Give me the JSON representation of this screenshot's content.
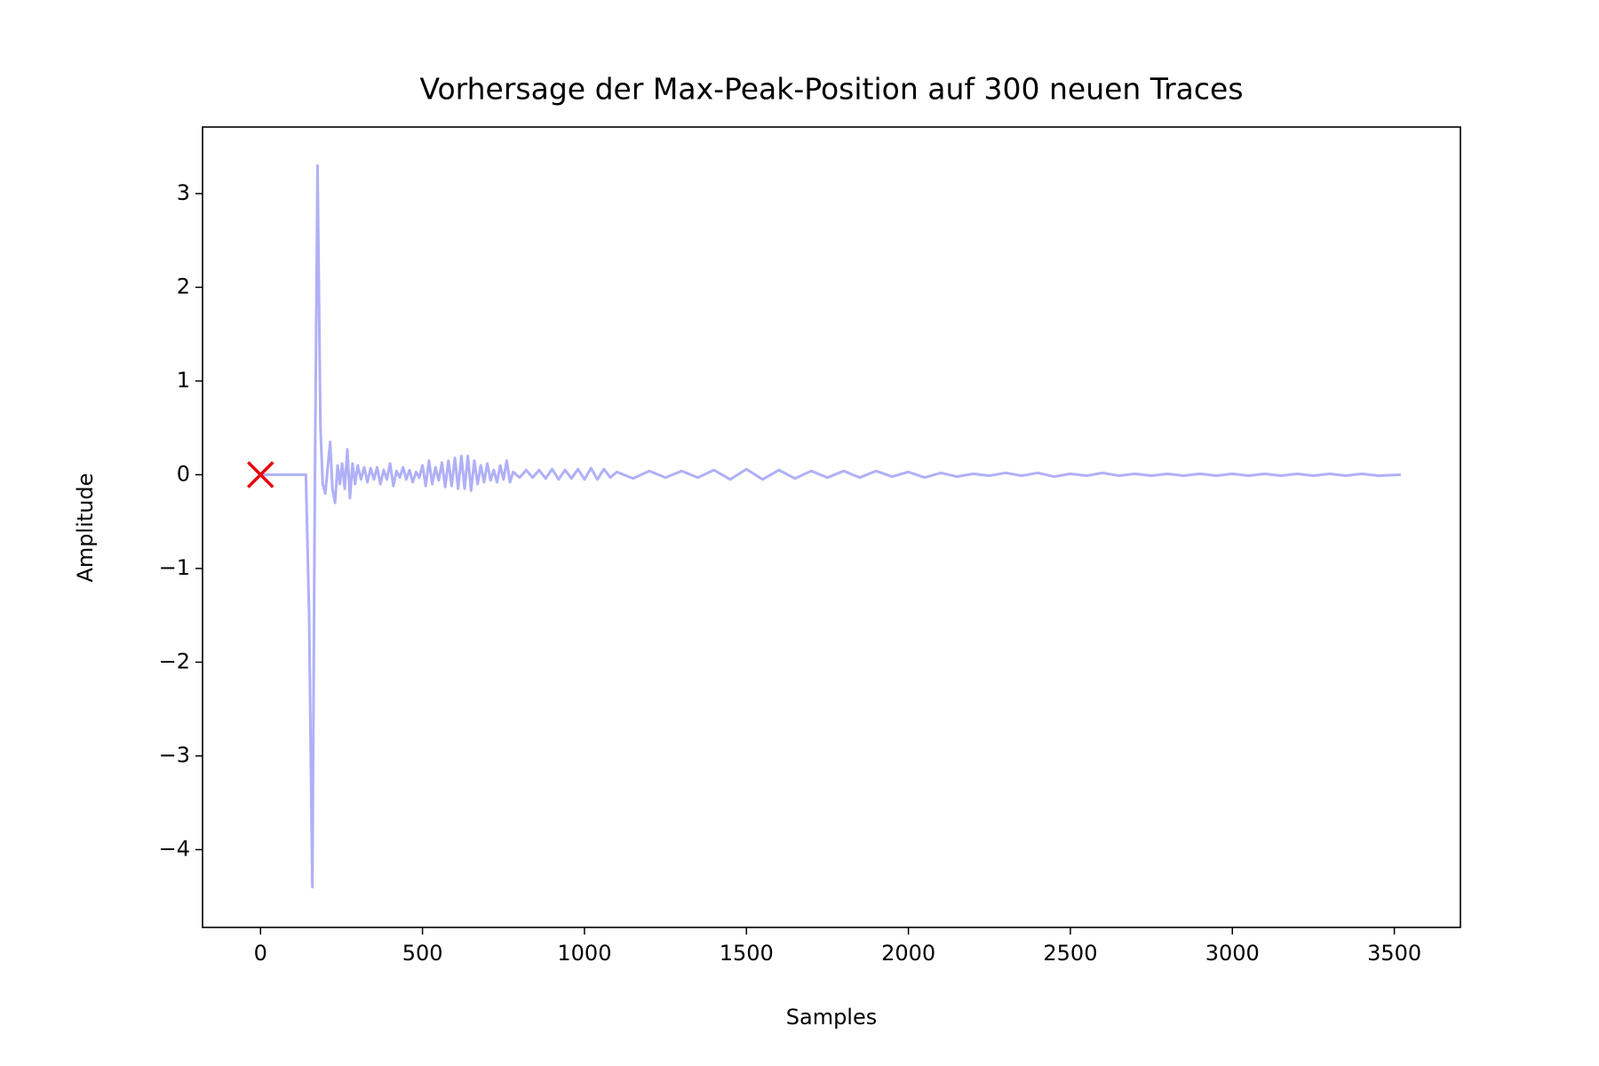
{
  "chart_data": {
    "type": "line",
    "title": "Vorhersage der Max-Peak-Position auf 300 neuen Traces",
    "xlabel": "Samples",
    "ylabel": "Amplitude",
    "xlim": [
      -179,
      3704
    ],
    "ylim": [
      -4.83,
      3.71
    ],
    "xticks": [
      0,
      500,
      1000,
      1500,
      2000,
      2500,
      3000,
      3500
    ],
    "yticks": [
      {
        "value": -4,
        "label": "−4"
      },
      {
        "value": -3,
        "label": "−3"
      },
      {
        "value": -2,
        "label": "−2"
      },
      {
        "value": -1,
        "label": "−1"
      },
      0,
      1,
      2,
      3
    ],
    "grid": false,
    "series": [
      {
        "type": "line",
        "color": "#b0b0f8",
        "x": [
          0,
          140,
          150,
          160,
          168,
          176,
          185,
          192,
          200,
          208,
          215,
          222,
          230,
          238,
          245,
          252,
          260,
          268,
          276,
          284,
          292,
          300,
          310,
          320,
          330,
          340,
          350,
          360,
          370,
          380,
          390,
          400,
          410,
          420,
          430,
          440,
          450,
          460,
          470,
          480,
          490,
          500,
          510,
          520,
          530,
          540,
          550,
          560,
          570,
          580,
          590,
          600,
          610,
          620,
          630,
          640,
          650,
          660,
          670,
          680,
          690,
          700,
          710,
          720,
          730,
          740,
          750,
          760,
          770,
          780,
          800,
          820,
          840,
          860,
          880,
          900,
          920,
          940,
          960,
          980,
          1000,
          1020,
          1040,
          1060,
          1080,
          1100,
          1150,
          1200,
          1250,
          1300,
          1350,
          1400,
          1450,
          1500,
          1550,
          1600,
          1650,
          1700,
          1750,
          1800,
          1850,
          1900,
          1950,
          2000,
          2050,
          2100,
          2150,
          2200,
          2250,
          2300,
          2350,
          2400,
          2450,
          2500,
          2550,
          2600,
          2650,
          2700,
          2750,
          2800,
          2850,
          2900,
          2950,
          3000,
          3050,
          3100,
          3150,
          3200,
          3250,
          3300,
          3350,
          3400,
          3450,
          3520
        ],
        "values": [
          0,
          0,
          -1.5,
          -4.4,
          0,
          3.3,
          0.5,
          -0.1,
          -0.2,
          0.1,
          0.35,
          -0.15,
          -0.3,
          0.1,
          -0.1,
          0.12,
          -0.15,
          0.27,
          -0.25,
          0.12,
          -0.1,
          0.1,
          -0.05,
          0.08,
          -0.08,
          0.07,
          -0.05,
          0.08,
          -0.1,
          0.05,
          -0.05,
          0.12,
          -0.12,
          0.04,
          -0.03,
          0.08,
          -0.05,
          0.05,
          -0.08,
          0.03,
          -0.03,
          0.1,
          -0.12,
          0.15,
          -0.1,
          0.08,
          -0.06,
          0.13,
          -0.13,
          0.15,
          -0.12,
          0.18,
          -0.15,
          0.2,
          -0.15,
          0.2,
          -0.17,
          0.15,
          -0.1,
          0.1,
          -0.08,
          0.12,
          -0.06,
          0.05,
          -0.08,
          0.1,
          -0.05,
          0.15,
          -0.08,
          0.03,
          -0.03,
          0.05,
          -0.03,
          0.05,
          -0.04,
          0.06,
          -0.05,
          0.05,
          -0.04,
          0.06,
          -0.05,
          0.07,
          -0.05,
          0.06,
          -0.03,
          0.03,
          -0.04,
          0.04,
          -0.03,
          0.04,
          -0.03,
          0.05,
          -0.05,
          0.06,
          -0.05,
          0.05,
          -0.04,
          0.04,
          -0.03,
          0.04,
          -0.03,
          0.04,
          -0.02,
          0.03,
          -0.03,
          0.02,
          -0.02,
          0.01,
          -0.01,
          0.02,
          -0.01,
          0.02,
          -0.02,
          0.01,
          -0.01,
          0.02,
          -0.01,
          0.01,
          -0.01,
          0.01,
          -0.01,
          0.01,
          -0.01,
          0.01,
          -0.01,
          0.01,
          -0.01,
          0.01,
          -0.01,
          0.01,
          -0.01,
          0.01,
          -0.01,
          0
        ]
      },
      {
        "type": "scatter",
        "marker": "x",
        "color": "#e8000b",
        "x": [
          0
        ],
        "values": [
          0
        ]
      }
    ]
  }
}
